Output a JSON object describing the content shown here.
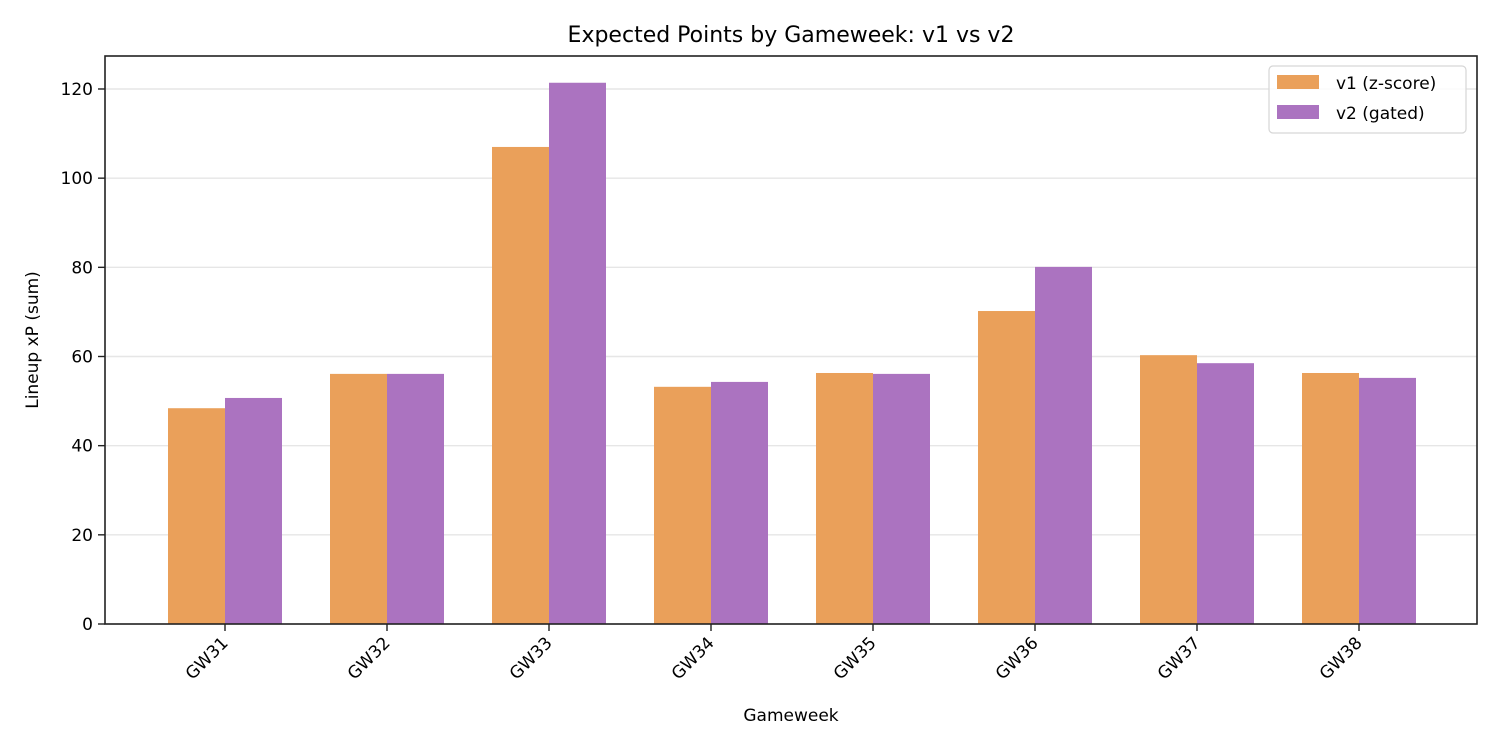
{
  "chart_data": {
    "type": "bar",
    "title": "Expected Points by Gameweek: v1 vs v2",
    "xlabel": "Gameweek",
    "ylabel": "Lineup xP (sum)",
    "categories": [
      "GW31",
      "GW32",
      "GW33",
      "GW34",
      "GW35",
      "GW36",
      "GW37",
      "GW38"
    ],
    "series": [
      {
        "name": "v1 (z-score)",
        "color": "#EAA05A",
        "values": [
          48.4,
          56.1,
          107.0,
          53.2,
          56.3,
          70.2,
          60.3,
          56.3
        ]
      },
      {
        "name": "v2 (gated)",
        "color": "#AB73C0",
        "values": [
          50.7,
          56.1,
          121.4,
          54.3,
          56.1,
          80.1,
          58.5,
          55.2
        ]
      }
    ],
    "ylim": [
      0,
      127.4
    ],
    "yticks": [
      0,
      20,
      40,
      60,
      80,
      100,
      120
    ],
    "grid": {
      "y": true,
      "x": false
    },
    "legend_position": "upper right",
    "xtick_rotation": 45
  }
}
